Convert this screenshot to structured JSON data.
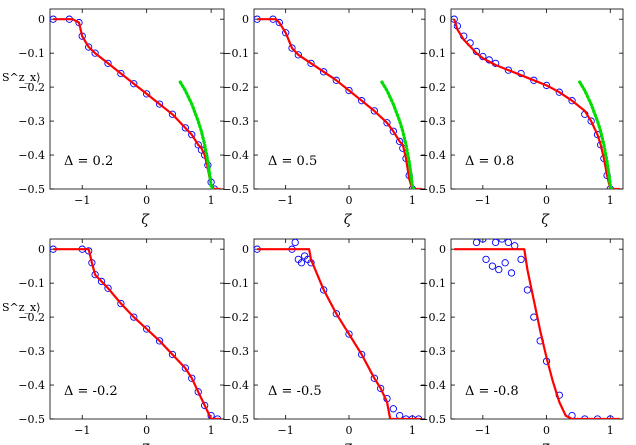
{
  "chart_data": [
    {
      "type": "line",
      "annotation": "Δ = 0.2",
      "xlabel": "ζ",
      "ylabel": "S^z_x⟩",
      "xlim": [
        -1.5,
        1.2
      ],
      "ylim": [
        -0.5,
        0.03
      ],
      "x_ticks": [
        "−1",
        "0",
        "1"
      ],
      "y_ticks": [
        "0",
        "−0.1",
        "−0.2",
        "−0.3",
        "−0.4",
        "−0.5"
      ],
      "series": [
        {
          "style": "circles",
          "color": "#0000ff",
          "x": [
            -1.45,
            -1.2,
            -1.05,
            -1.0,
            -0.9,
            -0.8,
            -0.6,
            -0.4,
            -0.2,
            0.0,
            0.2,
            0.4,
            0.6,
            0.7,
            0.8,
            0.85,
            0.9,
            0.95,
            1.0,
            1.05
          ],
          "y": [
            0,
            0,
            -0.01,
            -0.05,
            -0.082,
            -0.1,
            -0.13,
            -0.16,
            -0.19,
            -0.22,
            -0.25,
            -0.28,
            -0.32,
            -0.34,
            -0.37,
            -0.385,
            -0.4,
            -0.43,
            -0.48,
            -0.5
          ]
        },
        {
          "style": "solid",
          "color": "#ff0000",
          "x": [
            -1.45,
            -1.15,
            -1.05,
            -1.0,
            -0.9,
            -0.8,
            -0.6,
            -0.4,
            -0.2,
            0.0,
            0.2,
            0.4,
            0.6,
            0.7,
            0.8,
            0.85,
            0.9,
            0.95,
            1.0,
            1.05,
            1.15
          ],
          "y": [
            0,
            0,
            -0.01,
            -0.05,
            -0.082,
            -0.1,
            -0.13,
            -0.16,
            -0.19,
            -0.22,
            -0.25,
            -0.28,
            -0.32,
            -0.34,
            -0.37,
            -0.38,
            -0.4,
            -0.44,
            -0.49,
            -0.5,
            -0.5
          ]
        },
        {
          "style": "dotted",
          "color": "#00dd00",
          "x": [
            0.52,
            0.6,
            0.7,
            0.8,
            0.85,
            0.9,
            0.95,
            0.98,
            1.0,
            1.02
          ],
          "y": [
            -0.185,
            -0.21,
            -0.25,
            -0.3,
            -0.33,
            -0.37,
            -0.42,
            -0.46,
            -0.49,
            -0.5
          ]
        }
      ]
    },
    {
      "type": "line",
      "annotation": "Δ = 0.5",
      "xlabel": "ζ",
      "ylabel": "",
      "xlim": [
        -1.5,
        1.2
      ],
      "ylim": [
        -0.5,
        0.03
      ],
      "x_ticks": [
        "−1",
        "0",
        "1"
      ],
      "y_ticks": [
        "0",
        "−0.1",
        "−0.2",
        "−0.3",
        "−0.4",
        "−0.5"
      ],
      "series": [
        {
          "style": "circles",
          "color": "#0000ff",
          "x": [
            -1.45,
            -1.2,
            -1.1,
            -1.0,
            -0.9,
            -0.8,
            -0.6,
            -0.4,
            -0.2,
            0.0,
            0.2,
            0.4,
            0.6,
            0.7,
            0.8,
            0.85,
            0.9,
            0.95,
            1.0
          ],
          "y": [
            0,
            0,
            -0.01,
            -0.04,
            -0.085,
            -0.105,
            -0.13,
            -0.155,
            -0.18,
            -0.21,
            -0.24,
            -0.27,
            -0.305,
            -0.33,
            -0.36,
            -0.38,
            -0.41,
            -0.46,
            -0.5
          ]
        },
        {
          "style": "solid",
          "color": "#ff0000",
          "x": [
            -1.45,
            -1.15,
            -1.1,
            -1.0,
            -0.9,
            -0.8,
            -0.6,
            -0.4,
            -0.2,
            0.0,
            0.2,
            0.4,
            0.6,
            0.7,
            0.8,
            0.85,
            0.9,
            0.95,
            1.0,
            1.15
          ],
          "y": [
            0,
            0,
            -0.01,
            -0.04,
            -0.085,
            -0.105,
            -0.13,
            -0.155,
            -0.18,
            -0.21,
            -0.24,
            -0.27,
            -0.305,
            -0.33,
            -0.36,
            -0.37,
            -0.41,
            -0.47,
            -0.5,
            -0.5
          ]
        },
        {
          "style": "dotted",
          "color": "#00dd00",
          "x": [
            0.52,
            0.6,
            0.7,
            0.8,
            0.85,
            0.9,
            0.95,
            0.98,
            1.0,
            1.02
          ],
          "y": [
            -0.185,
            -0.21,
            -0.25,
            -0.3,
            -0.33,
            -0.37,
            -0.42,
            -0.46,
            -0.49,
            -0.5
          ]
        }
      ]
    },
    {
      "type": "line",
      "annotation": "Δ = 0.8",
      "xlabel": "ζ",
      "ylabel": "",
      "xlim": [
        -1.5,
        1.2
      ],
      "ylim": [
        -0.5,
        0.03
      ],
      "x_ticks": [
        "−1",
        "0",
        "1"
      ],
      "y_ticks": [
        "0",
        "−0.1",
        "−0.2",
        "−0.3",
        "−0.4",
        "−0.5"
      ],
      "series": [
        {
          "style": "circles",
          "color": "#0000ff",
          "x": [
            -1.45,
            -1.4,
            -1.3,
            -1.2,
            -1.1,
            -1.0,
            -0.9,
            -0.8,
            -0.6,
            -0.4,
            -0.2,
            0.0,
            0.2,
            0.4,
            0.6,
            0.7,
            0.8,
            0.85,
            0.9,
            0.95,
            1.0
          ],
          "y": [
            0,
            -0.02,
            -0.05,
            -0.07,
            -0.095,
            -0.11,
            -0.12,
            -0.13,
            -0.15,
            -0.16,
            -0.18,
            -0.195,
            -0.215,
            -0.24,
            -0.28,
            -0.3,
            -0.34,
            -0.37,
            -0.41,
            -0.46,
            -0.5
          ]
        },
        {
          "style": "solid",
          "color": "#ff0000",
          "x": [
            -1.45,
            -1.4,
            -1.3,
            -1.2,
            -1.1,
            -1.0,
            -0.9,
            -0.8,
            -0.6,
            -0.4,
            -0.2,
            0.0,
            0.2,
            0.4,
            0.6,
            0.7,
            0.8,
            0.85,
            0.9,
            0.95,
            1.0,
            1.15
          ],
          "y": [
            0,
            -0.03,
            -0.06,
            -0.08,
            -0.1,
            -0.115,
            -0.125,
            -0.135,
            -0.15,
            -0.165,
            -0.18,
            -0.195,
            -0.215,
            -0.24,
            -0.27,
            -0.3,
            -0.34,
            -0.37,
            -0.41,
            -0.46,
            -0.5,
            -0.5
          ]
        },
        {
          "style": "dotted",
          "color": "#00dd00",
          "x": [
            0.52,
            0.6,
            0.7,
            0.8,
            0.85,
            0.9,
            0.95,
            0.98,
            1.0,
            1.02
          ],
          "y": [
            -0.185,
            -0.21,
            -0.25,
            -0.3,
            -0.33,
            -0.37,
            -0.42,
            -0.46,
            -0.49,
            -0.5
          ]
        }
      ]
    },
    {
      "type": "line",
      "annotation": "Δ = -0.2",
      "xlabel": "ζ",
      "ylabel": "S^z_x⟩",
      "xlim": [
        -1.5,
        1.2
      ],
      "ylim": [
        -0.5,
        0.03
      ],
      "x_ticks": [
        "−1",
        "0",
        "1"
      ],
      "y_ticks": [
        "0",
        "−0.1",
        "−0.2",
        "−0.3",
        "−0.4",
        "−0.5"
      ],
      "series": [
        {
          "style": "circles",
          "color": "#0000ff",
          "x": [
            -1.45,
            -1.0,
            -0.9,
            -0.85,
            -0.8,
            -0.7,
            -0.6,
            -0.4,
            -0.2,
            0.0,
            0.2,
            0.4,
            0.6,
            0.7,
            0.8,
            0.9,
            1.0,
            1.1
          ],
          "y": [
            0,
            0,
            -0.005,
            -0.04,
            -0.075,
            -0.095,
            -0.115,
            -0.16,
            -0.2,
            -0.235,
            -0.27,
            -0.31,
            -0.35,
            -0.38,
            -0.42,
            -0.46,
            -0.49,
            -0.5
          ]
        },
        {
          "style": "solid",
          "color": "#ff0000",
          "x": [
            -1.45,
            -0.9,
            -0.85,
            -0.8,
            -0.7,
            -0.6,
            -0.4,
            -0.2,
            0.0,
            0.2,
            0.4,
            0.6,
            0.7,
            0.8,
            0.9,
            1.0,
            1.15
          ],
          "y": [
            0,
            0,
            -0.04,
            -0.075,
            -0.095,
            -0.115,
            -0.16,
            -0.2,
            -0.235,
            -0.27,
            -0.31,
            -0.35,
            -0.38,
            -0.42,
            -0.46,
            -0.5,
            -0.5
          ]
        }
      ]
    },
    {
      "type": "line",
      "annotation": "Δ = -0.5",
      "xlabel": "ζ",
      "ylabel": "",
      "xlim": [
        -1.5,
        1.2
      ],
      "ylim": [
        -0.5,
        0.03
      ],
      "x_ticks": [
        "−1",
        "0",
        "1"
      ],
      "y_ticks": [
        "0",
        "−0.1",
        "−0.2",
        "−0.3",
        "−0.4",
        "−0.5"
      ],
      "series": [
        {
          "style": "circles",
          "color": "#0000ff",
          "x": [
            -1.45,
            -0.9,
            -0.85,
            -0.8,
            -0.75,
            -0.7,
            -0.65,
            -0.6,
            -0.4,
            -0.2,
            0.0,
            0.2,
            0.4,
            0.5,
            0.6,
            0.7,
            0.8,
            0.9,
            1.0,
            1.1
          ],
          "y": [
            0,
            0,
            0.02,
            -0.03,
            -0.04,
            -0.02,
            -0.03,
            -0.04,
            -0.12,
            -0.19,
            -0.25,
            -0.31,
            -0.38,
            -0.41,
            -0.44,
            -0.47,
            -0.49,
            -0.5,
            -0.5,
            -0.5
          ]
        },
        {
          "style": "solid",
          "color": "#ff0000",
          "x": [
            -1.45,
            -0.63,
            -0.6,
            -0.4,
            -0.2,
            0.0,
            0.2,
            0.4,
            0.5,
            0.6,
            0.65,
            0.7,
            1.15
          ],
          "y": [
            0,
            0,
            -0.03,
            -0.12,
            -0.19,
            -0.25,
            -0.31,
            -0.38,
            -0.41,
            -0.45,
            -0.5,
            -0.5,
            -0.5
          ]
        }
      ]
    },
    {
      "type": "line",
      "annotation": "Δ = -0.8",
      "xlabel": "ζ",
      "ylabel": "",
      "xlim": [
        -1.5,
        1.2
      ],
      "ylim": [
        -0.5,
        0.03
      ],
      "x_ticks": [
        "−1",
        "0",
        "1"
      ],
      "y_ticks": [
        "0",
        "−0.1",
        "−0.2",
        "−0.3",
        "−0.4",
        "−0.5"
      ],
      "series": [
        {
          "style": "circles",
          "color": "#0000ff",
          "x": [
            -1.1,
            -1.0,
            -0.95,
            -0.9,
            -0.85,
            -0.8,
            -0.75,
            -0.7,
            -0.65,
            -0.6,
            -0.55,
            -0.5,
            -0.4,
            -0.3,
            -0.2,
            -0.1,
            0.0,
            0.2,
            0.4,
            0.6,
            0.8,
            1.0
          ],
          "y": [
            0.02,
            0.03,
            -0.03,
            0.04,
            -0.05,
            0.02,
            -0.06,
            0.03,
            -0.04,
            0.02,
            -0.07,
            0.01,
            -0.03,
            -0.12,
            -0.2,
            -0.27,
            -0.33,
            -0.43,
            -0.49,
            -0.5,
            -0.5,
            -0.5
          ]
        },
        {
          "style": "solid",
          "color": "#ff0000",
          "x": [
            -1.45,
            -0.35,
            -0.3,
            -0.2,
            -0.1,
            0.0,
            0.1,
            0.2,
            0.3,
            0.4,
            1.15
          ],
          "y": [
            0,
            0,
            -0.06,
            -0.15,
            -0.24,
            -0.32,
            -0.39,
            -0.45,
            -0.49,
            -0.5,
            -0.5
          ]
        }
      ]
    }
  ]
}
